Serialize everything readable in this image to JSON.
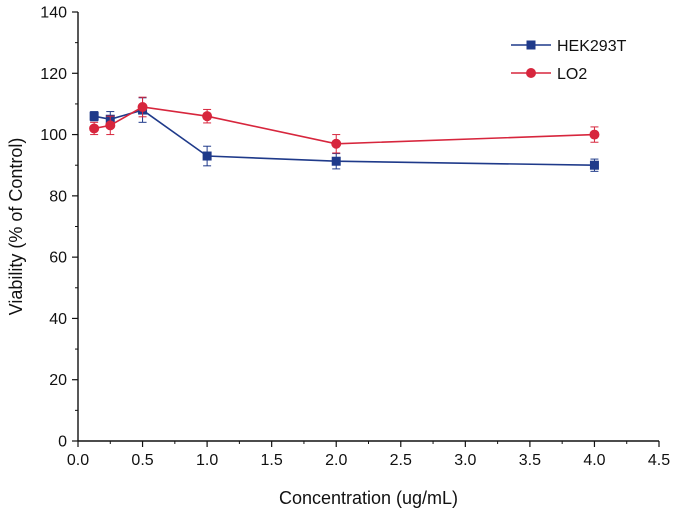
{
  "chart_data": {
    "type": "line",
    "title": "",
    "xlabel": "Concentration (ug/mL)",
    "ylabel": "Viability (% of Control)",
    "xlim": [
      0,
      4.5
    ],
    "ylim": [
      0,
      140
    ],
    "xticks": [
      0.0,
      0.5,
      1.0,
      1.5,
      2.0,
      2.5,
      3.0,
      3.5,
      4.0,
      4.5
    ],
    "xtick_labels": [
      "0.0",
      "0.5",
      "1.0",
      "1.5",
      "2.0",
      "2.5",
      "3.0",
      "3.5",
      "4.0",
      "4.5"
    ],
    "yticks": [
      0,
      20,
      40,
      60,
      80,
      100,
      120,
      140
    ],
    "ytick_labels": [
      "0",
      "20",
      "40",
      "60",
      "80",
      "100",
      "120",
      "140"
    ],
    "grid": false,
    "legend_position": "top-right",
    "series": [
      {
        "name": "HEK293T",
        "color": "#1f3a8a",
        "marker": "square",
        "x": [
          0.125,
          0.25,
          0.5,
          1.0,
          2.0,
          4.0
        ],
        "y": [
          106,
          105,
          108,
          93,
          91.3,
          90
        ],
        "err": [
          1.5,
          2.5,
          4.0,
          3.2,
          2.5,
          2.0
        ]
      },
      {
        "name": "LO2",
        "color": "#d7263d",
        "marker": "circle",
        "x": [
          0.125,
          0.25,
          0.5,
          1.0,
          2.0,
          4.0
        ],
        "y": [
          102,
          103,
          109,
          106,
          97,
          100
        ],
        "err": [
          2.0,
          3.0,
          3.2,
          2.2,
          3.0,
          2.5
        ]
      }
    ]
  }
}
